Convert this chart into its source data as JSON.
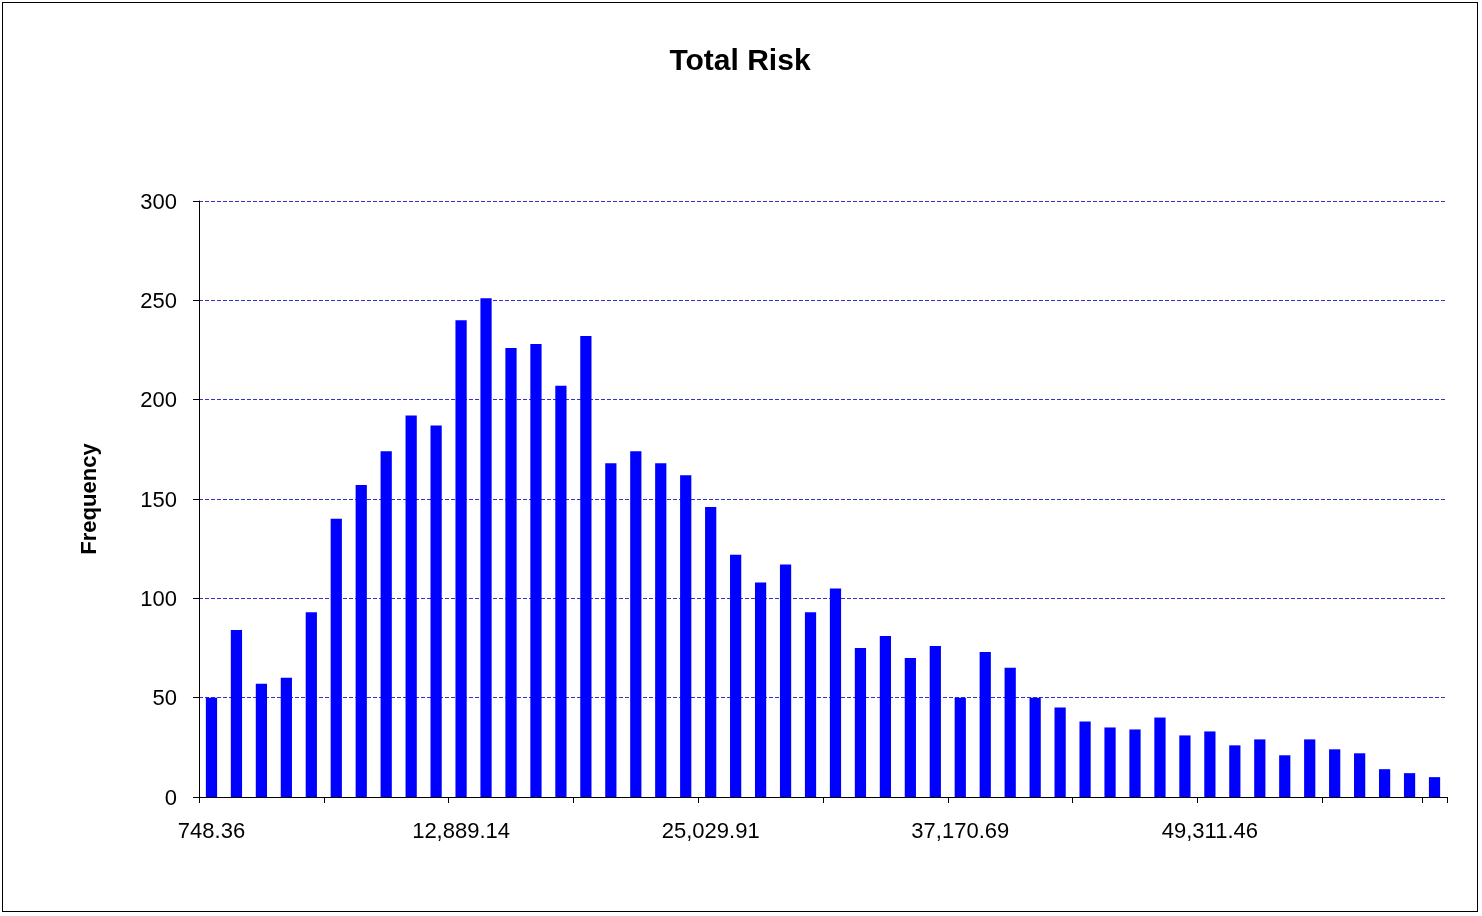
{
  "chart_data": {
    "type": "bar",
    "title": "Total Risk",
    "ylabel": "Frequency",
    "categories": [
      "748.36",
      null,
      null,
      null,
      null,
      null,
      null,
      null,
      null,
      null,
      "12,889.14",
      null,
      null,
      null,
      null,
      null,
      null,
      null,
      null,
      null,
      "25,029.91",
      null,
      null,
      null,
      null,
      null,
      null,
      null,
      null,
      null,
      "37,170.69",
      null,
      null,
      null,
      null,
      null,
      null,
      null,
      null,
      null,
      "49,311.46",
      null,
      null,
      null,
      null,
      null,
      null,
      null,
      null,
      null
    ],
    "values": [
      50,
      84,
      57,
      60,
      93,
      140,
      157,
      174,
      192,
      187,
      240,
      251,
      226,
      228,
      207,
      232,
      168,
      174,
      168,
      162,
      146,
      122,
      108,
      117,
      93,
      105,
      75,
      81,
      70,
      76,
      50,
      73,
      65,
      50,
      45,
      38,
      35,
      34,
      40,
      31,
      33,
      26,
      29,
      21,
      29,
      24,
      22,
      14,
      12,
      10
    ],
    "color": "#0000ff",
    "ylim": [
      0,
      300
    ],
    "yticks": [
      0,
      50,
      100,
      150,
      200,
      250,
      300
    ],
    "grid": "y"
  }
}
